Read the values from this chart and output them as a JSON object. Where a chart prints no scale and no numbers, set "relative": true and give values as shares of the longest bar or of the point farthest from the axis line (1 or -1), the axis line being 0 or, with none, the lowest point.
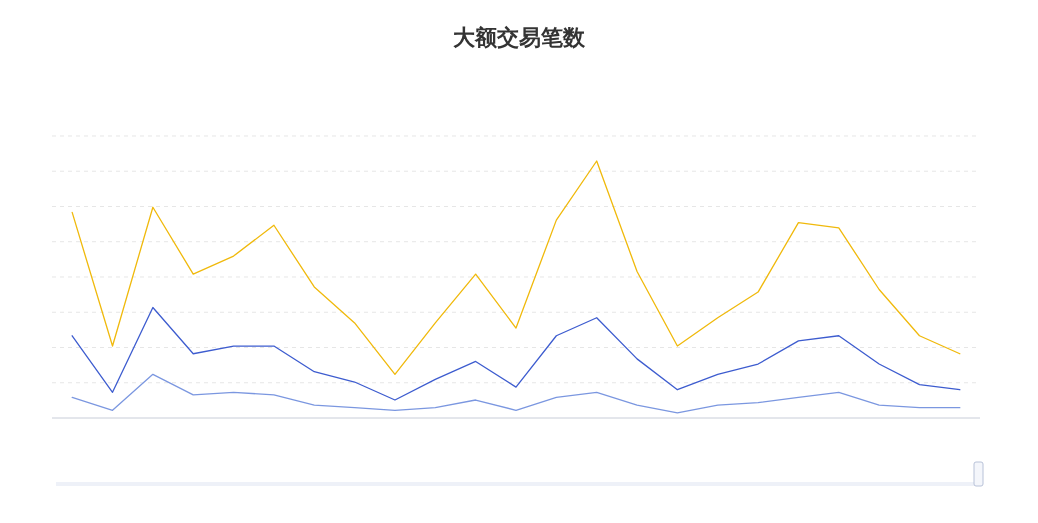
{
  "chart_data": {
    "type": "line",
    "title": "大额交易笔数",
    "relative": true,
    "grid": "y",
    "marker": "none",
    "line_style": "solid",
    "categories": [
      null,
      null,
      null,
      null,
      null,
      null,
      null,
      null,
      null,
      null,
      null,
      null,
      null,
      null,
      null,
      null,
      null,
      null,
      null,
      null,
      null,
      null,
      null
    ],
    "series": [
      {
        "color": "#f0b90b",
        "values": [
          0.8,
          0.28,
          0.82,
          0.56,
          0.63,
          0.75,
          0.51,
          0.37,
          0.17,
          0.37,
          0.56,
          0.35,
          0.77,
          1,
          0.57,
          0.28,
          0.39,
          0.49,
          0.76,
          0.74,
          0.5,
          0.32,
          0.25
        ]
      },
      {
        "color": "#3d5ccf",
        "values": [
          0.32,
          0.1,
          0.43,
          0.25,
          0.28,
          0.28,
          0.18,
          0.14,
          0.07,
          0.15,
          0.22,
          0.12,
          0.32,
          0.39,
          0.23,
          0.11,
          0.17,
          0.21,
          0.3,
          0.32,
          0.21,
          0.13,
          0.11
        ]
      },
      {
        "color": "#7b97e0",
        "values": [
          0.08,
          0.03,
          0.17,
          0.09,
          0.1,
          0.09,
          0.05,
          0.04,
          0.03,
          0.04,
          0.07,
          0.03,
          0.08,
          0.1,
          0.05,
          0.02,
          0.05,
          0.06,
          0.08,
          0.1,
          0.05,
          0.04,
          0.04
        ]
      }
    ]
  }
}
